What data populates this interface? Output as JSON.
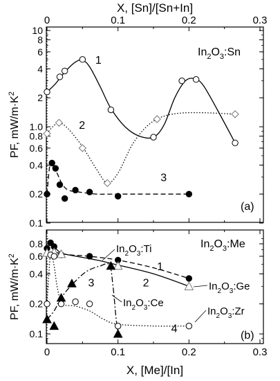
{
  "chart_data": [
    {
      "panel": "(a)",
      "type": "line",
      "material_html": "In<sub>2</sub>O<sub>3</sub>:Sn",
      "material": "In2O3:Sn",
      "panel_label": "(a)",
      "xlabel_top": "X, [Sn]/[Sn+In]",
      "ylabel": "PF, mW/m·K²",
      "yscale": "log",
      "xlim": [
        0,
        0.3
      ],
      "ylim": [
        0.1,
        10
      ],
      "x_ticks": [
        "0",
        "0.1",
        "0.2",
        "0.3"
      ],
      "y_ticks": [
        {
          "value": 10,
          "label": "10"
        },
        {
          "value": 8,
          "label": "8"
        },
        {
          "value": 6,
          "label": "6"
        },
        {
          "value": 4,
          "label": "4"
        },
        {
          "value": 2,
          "label": "2"
        },
        {
          "value": 1.0,
          "label": "1.0"
        },
        {
          "value": 0.8,
          "label": "0.8"
        },
        {
          "value": 0.6,
          "label": "0.6"
        },
        {
          "value": 0.4,
          "label": "0.4"
        },
        {
          "value": 0.2,
          "label": "0.2"
        },
        {
          "value": 0.1,
          "label": "0.1"
        }
      ],
      "series": [
        {
          "name": "1",
          "marker": "open-circle",
          "line": "solid",
          "label_at": [
            0.068,
            5.0
          ],
          "points": [
            [
              0,
              2.3
            ],
            [
              0.018,
              3.3
            ],
            [
              0.025,
              3.8
            ],
            [
              0.05,
              5.0
            ],
            [
              0.09,
              1.5
            ],
            [
              0.15,
              0.78
            ],
            [
              0.19,
              3.0
            ],
            [
              0.21,
              3.1
            ],
            [
              0.265,
              0.68
            ]
          ],
          "curve": [
            [
              0,
              2.3
            ],
            [
              0.012,
              2.8
            ],
            [
              0.025,
              3.7
            ],
            [
              0.04,
              4.7
            ],
            [
              0.05,
              4.9
            ],
            [
              0.06,
              4.2
            ],
            [
              0.075,
              2.6
            ],
            [
              0.09,
              1.55
            ],
            [
              0.11,
              1.0
            ],
            [
              0.13,
              0.8
            ],
            [
              0.15,
              0.78
            ],
            [
              0.165,
              1.05
            ],
            [
              0.18,
              2.0
            ],
            [
              0.195,
              3.0
            ],
            [
              0.208,
              3.15
            ],
            [
              0.22,
              2.7
            ],
            [
              0.24,
              1.5
            ],
            [
              0.265,
              0.68
            ]
          ]
        },
        {
          "name": "2",
          "marker": "open-diamond",
          "line": "dotted",
          "label_at": [
            0.045,
            1.05
          ],
          "points": [
            [
              0,
              0.85
            ],
            [
              0.017,
              1.1
            ],
            [
              0.05,
              0.6
            ],
            [
              0.085,
              0.26
            ],
            [
              0.155,
              1.2
            ],
            [
              0.265,
              1.35
            ]
          ],
          "curve": [
            [
              0,
              0.85
            ],
            [
              0.008,
              1.0
            ],
            [
              0.017,
              1.1
            ],
            [
              0.03,
              0.95
            ],
            [
              0.05,
              0.62
            ],
            [
              0.07,
              0.36
            ],
            [
              0.085,
              0.26
            ],
            [
              0.1,
              0.33
            ],
            [
              0.12,
              0.65
            ],
            [
              0.14,
              1.0
            ],
            [
              0.16,
              1.25
            ],
            [
              0.185,
              1.38
            ],
            [
              0.22,
              1.4
            ],
            [
              0.265,
              1.35
            ]
          ]
        },
        {
          "name": "3",
          "marker": "filled-circle",
          "line": "dashed",
          "label_at": [
            0.16,
            0.3
          ],
          "points": [
            [
              0,
              0.2
            ],
            [
              0.007,
              0.42
            ],
            [
              0.012,
              0.37
            ],
            [
              0.018,
              0.25
            ],
            [
              0.025,
              0.18
            ],
            [
              0.04,
              0.22
            ],
            [
              0.06,
              0.21
            ],
            [
              0.1,
              0.19
            ],
            [
              0.2,
              0.2
            ]
          ],
          "curve": [
            [
              0,
              0.2
            ],
            [
              0.004,
              0.4
            ],
            [
              0.008,
              0.42
            ],
            [
              0.015,
              0.32
            ],
            [
              0.022,
              0.25
            ],
            [
              0.03,
              0.22
            ],
            [
              0.045,
              0.21
            ],
            [
              0.07,
              0.2
            ],
            [
              0.1,
              0.2
            ],
            [
              0.2,
              0.2
            ]
          ]
        }
      ]
    },
    {
      "panel": "(b)",
      "type": "line",
      "material_html": "In<sub>2</sub>O<sub>3</sub>:Me",
      "material": "In2O3:Me",
      "panel_label": "(b)",
      "xlabel": "X, [Me]/[In]",
      "ylabel": "PF, mW/m·K²",
      "yscale": "log",
      "xlim": [
        0,
        0.3
      ],
      "ylim": [
        0.08,
        1.0
      ],
      "x_ticks": [
        "0",
        "0.1",
        "0.2",
        "0.3"
      ],
      "y_ticks": [
        {
          "value": 0.8,
          "label": "0.8"
        },
        {
          "value": 0.6,
          "label": "0.6"
        },
        {
          "value": 0.4,
          "label": "0.4"
        },
        {
          "value": 0.2,
          "label": "0.2"
        },
        {
          "value": 0.1,
          "label": "0.1"
        }
      ],
      "series": [
        {
          "name": "1",
          "dopant": "Ti",
          "marker": "filled-circle",
          "line": "dashed",
          "label_at": [
            0.155,
            0.48
          ],
          "points": [
            [
              0,
              0.72
            ],
            [
              0.005,
              0.82
            ],
            [
              0.01,
              0.75
            ],
            [
              0.02,
              0.62
            ],
            [
              0.06,
              0.6
            ],
            [
              0.1,
              0.55
            ],
            [
              0.2,
              0.36
            ]
          ],
          "curve": [
            [
              0,
              0.72
            ],
            [
              0.005,
              0.82
            ],
            [
              0.012,
              0.72
            ],
            [
              0.025,
              0.63
            ],
            [
              0.06,
              0.6
            ],
            [
              0.1,
              0.55
            ],
            [
              0.15,
              0.46
            ],
            [
              0.2,
              0.36
            ]
          ]
        },
        {
          "name": "2",
          "dopant": "Ge",
          "marker": "open-triangle",
          "line": "solid",
          "label_at": [
            0.135,
            0.33
          ],
          "points": [
            [
              0,
              0.65
            ],
            [
              0.01,
              0.66
            ],
            [
              0.02,
              0.63
            ],
            [
              0.1,
              0.48
            ],
            [
              0.2,
              0.3
            ]
          ],
          "curve": [
            [
              0,
              0.65
            ],
            [
              0.01,
              0.66
            ],
            [
              0.03,
              0.62
            ],
            [
              0.07,
              0.55
            ],
            [
              0.1,
              0.49
            ],
            [
              0.15,
              0.4
            ],
            [
              0.2,
              0.3
            ]
          ]
        },
        {
          "name": "3",
          "dopant": "Ce",
          "marker": "filled-triangle",
          "line": "dash-dot",
          "label_at": [
            0.058,
            0.33
          ],
          "points": [
            [
              0,
              0.14
            ],
            [
              0.01,
              0.12
            ],
            [
              0.02,
              0.23
            ],
            [
              0.035,
              0.32
            ],
            [
              0.09,
              0.48
            ],
            [
              0.1,
              0.1
            ]
          ],
          "curve": [
            [
              0,
              0.14
            ],
            [
              0.01,
              0.17
            ],
            [
              0.02,
              0.23
            ],
            [
              0.035,
              0.31
            ],
            [
              0.055,
              0.42
            ],
            [
              0.075,
              0.48
            ],
            [
              0.088,
              0.49
            ],
            [
              0.093,
              0.3
            ],
            [
              0.097,
              0.15
            ],
            [
              0.1,
              0.1
            ]
          ]
        },
        {
          "name": "4",
          "dopant": "Zr",
          "marker": "open-circle",
          "line": "dotted",
          "label_at": [
            0.175,
            0.115
          ],
          "points": [
            [
              0,
              0.2
            ],
            [
              0.005,
              0.62
            ],
            [
              0.01,
              0.6
            ],
            [
              0.02,
              0.2
            ],
            [
              0.04,
              0.21
            ],
            [
              0.06,
              0.2
            ],
            [
              0.1,
              0.12
            ],
            [
              0.2,
              0.12
            ]
          ],
          "curve": [
            [
              0,
              0.2
            ],
            [
              0.004,
              0.55
            ],
            [
              0.006,
              0.62
            ],
            [
              0.01,
              0.48
            ],
            [
              0.015,
              0.28
            ],
            [
              0.022,
              0.2
            ],
            [
              0.04,
              0.19
            ],
            [
              0.06,
              0.17
            ],
            [
              0.08,
              0.14
            ],
            [
              0.1,
              0.125
            ],
            [
              0.15,
              0.12
            ],
            [
              0.2,
              0.12
            ]
          ]
        }
      ],
      "annotations": [
        {
          "id": "ti",
          "label_html": "In<sub>2</sub>O<sub>3</sub>:Ti"
        },
        {
          "id": "ge",
          "label_html": "In<sub>2</sub>O<sub>3</sub>:Ge"
        },
        {
          "id": "ce",
          "label_html": "In<sub>2</sub>O<sub>3</sub>:Ce"
        },
        {
          "id": "zr",
          "label_html": "In<sub>2</sub>O<sub>3</sub>:Zr"
        }
      ]
    }
  ]
}
